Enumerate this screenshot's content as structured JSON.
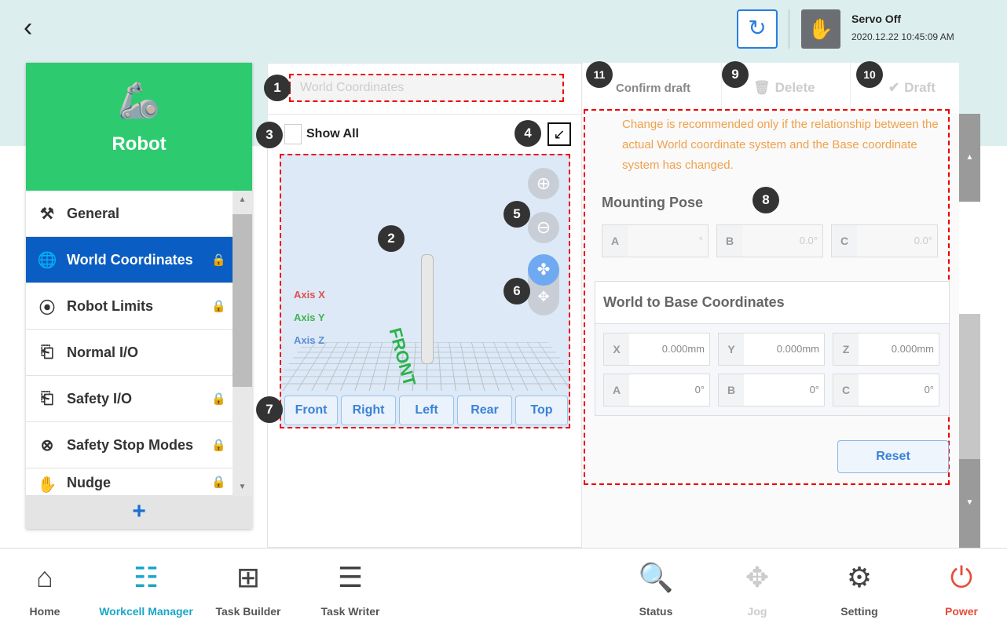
{
  "header": {
    "back_icon": "chevron-left-icon",
    "servo_status": "Servo Off",
    "datetime": "2020.12.22 10:45:09 AM"
  },
  "sidebar": {
    "title": "Robot",
    "items": [
      {
        "label": "General",
        "icon": "robot-arm-icon",
        "locked": false,
        "selected": false
      },
      {
        "label": "World Coordinates",
        "icon": "globe-icon",
        "locked": true,
        "selected": true
      },
      {
        "label": "Robot Limits",
        "icon": "limits-icon",
        "locked": true,
        "selected": false
      },
      {
        "label": "Normal I/O",
        "icon": "io-icon",
        "locked": false,
        "selected": false
      },
      {
        "label": "Safety I/O",
        "icon": "io-icon",
        "locked": true,
        "selected": false
      },
      {
        "label": "Safety Stop Modes",
        "icon": "stop-icon",
        "locked": true,
        "selected": false
      },
      {
        "label": "Nudge",
        "icon": "hand-icon",
        "locked": true,
        "selected": false
      }
    ],
    "add_label": "+"
  },
  "main": {
    "name_value": "World Coordinates",
    "show_all": "Show All",
    "axes": {
      "x": "Axis X",
      "y": "Axis Y",
      "z": "Axis Z"
    },
    "front_label": "FRONT",
    "views": [
      "Front",
      "Right",
      "Left",
      "Rear",
      "Top"
    ]
  },
  "tabs": {
    "confirm": "Confirm draft",
    "delete": "Delete",
    "draft": "Draft"
  },
  "settings": {
    "warning": "Change is recommended only if the relationship between the actual World coordinate system and the Base coordinate system has changed.",
    "mounting_title": "Mounting Pose",
    "mounting": [
      {
        "label": "A",
        "value": "°"
      },
      {
        "label": "B",
        "value": "0.0°"
      },
      {
        "label": "C",
        "value": "0.0°"
      }
    ],
    "wb_title": "World to Base Coordinates",
    "wb": [
      {
        "label": "X",
        "value": "0.000",
        "unit": "mm"
      },
      {
        "label": "Y",
        "value": "0.000",
        "unit": "mm"
      },
      {
        "label": "Z",
        "value": "0.000",
        "unit": "mm"
      },
      {
        "label": "A",
        "value": "0°",
        "unit": ""
      },
      {
        "label": "B",
        "value": "0°",
        "unit": ""
      },
      {
        "label": "C",
        "value": "0°",
        "unit": ""
      }
    ],
    "reset": "Reset"
  },
  "badges": [
    "1",
    "2",
    "3",
    "4",
    "5",
    "6",
    "7",
    "8",
    "9",
    "10",
    "11"
  ],
  "nav": [
    {
      "label": "Home",
      "color": "#555"
    },
    {
      "label": "Workcell Manager",
      "color": "#1aa6c8"
    },
    {
      "label": "Task Builder",
      "color": "#555"
    },
    {
      "label": "Task Writer",
      "color": "#555"
    },
    {
      "label": "Status",
      "color": "#555"
    },
    {
      "label": "Jog",
      "color": "#ccc"
    },
    {
      "label": "Setting",
      "color": "#555"
    },
    {
      "label": "Power",
      "color": "#e74c3c"
    }
  ]
}
